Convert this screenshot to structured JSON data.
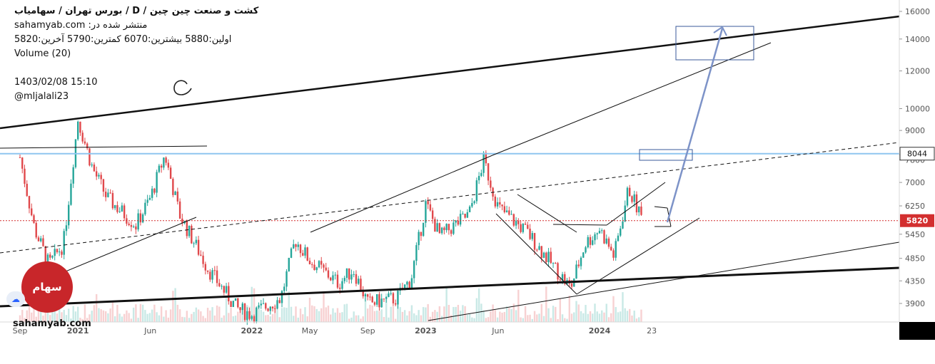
{
  "header": {
    "title": "کشت  و صنعت  چین  چین /  D  /  بورس تهران / سهامیاب",
    "source": "منتشر شده در: sahamyab.com",
    "ohlc": "اولین:5880  بیشترین:6070  کمترین:5790  آخرین:5820",
    "volume": "Volume (20)",
    "datetime": "1403/02/08 15:10",
    "user": "@mljalali23"
  },
  "logo": {
    "text": "سهام یاب",
    "color": "#c8262a"
  },
  "watermark": "sahamyab.com",
  "colors": {
    "up": "#26a69a",
    "down": "#e0484b",
    "trendline": "#111111",
    "level": "#8fc6f0",
    "price_line": "#d32f2f",
    "arrow": "#7d93c8"
  },
  "chart_data": {
    "type": "candlestick",
    "title": "کشت  و صنعت  چین  چین",
    "timeframe": "D",
    "y_scale": "log",
    "y_ticks": [
      "16000",
      "14000",
      "12000",
      "10000",
      "9000",
      "8000",
      "7800",
      "7000",
      "6250",
      "5820",
      "5450",
      "4850",
      "4350",
      "3900"
    ],
    "x_ticks": [
      "Sep",
      "2021",
      "Jun",
      "2022",
      "May",
      "Sep",
      "2023",
      "Jun",
      "2024",
      "23"
    ],
    "last_price": 5820,
    "highlighted_level": 8044,
    "price_path": [
      [
        "Sep 2020",
        7900
      ],
      [
        "Oct 2020",
        5600
      ],
      [
        "Nov 2020",
        4700
      ],
      [
        "Dec 2020",
        5200
      ],
      [
        "Jan 2021",
        9500
      ],
      [
        "Feb 2021",
        7500
      ],
      [
        "Mar 2021",
        6500
      ],
      [
        "May 2021",
        5700
      ],
      [
        "Jun 2021",
        6500
      ],
      [
        "Jul 2021",
        8000
      ],
      [
        "Aug 2021",
        6000
      ],
      [
        "Oct 2021",
        4600
      ],
      [
        "Dec 2021",
        3800
      ],
      [
        "Jan 2022",
        3700
      ],
      [
        "Mar 2022",
        4000
      ],
      [
        "Apr 2022",
        5300
      ],
      [
        "May 2022",
        4800
      ],
      [
        "Jul 2022",
        4300
      ],
      [
        "Aug 2022",
        4600
      ],
      [
        "Sep 2022",
        3900
      ],
      [
        "Nov 2022",
        4000
      ],
      [
        "Dec 2022",
        4400
      ],
      [
        "Jan 2023",
        6300
      ],
      [
        "Feb 2023",
        5400
      ],
      [
        "Apr 2023",
        6000
      ],
      [
        "May 2023",
        7800
      ],
      [
        "Jun 2023",
        6200
      ],
      [
        "Aug 2023",
        5500
      ],
      [
        "Oct 2023",
        4600
      ],
      [
        "Nov 2023",
        4200
      ],
      [
        "Dec 2023",
        5200
      ],
      [
        "Jan 2024",
        5600
      ],
      [
        "Feb 2024",
        4900
      ],
      [
        "Mar 2024",
        6800
      ],
      [
        "Apr 2024",
        5820
      ]
    ]
  }
}
